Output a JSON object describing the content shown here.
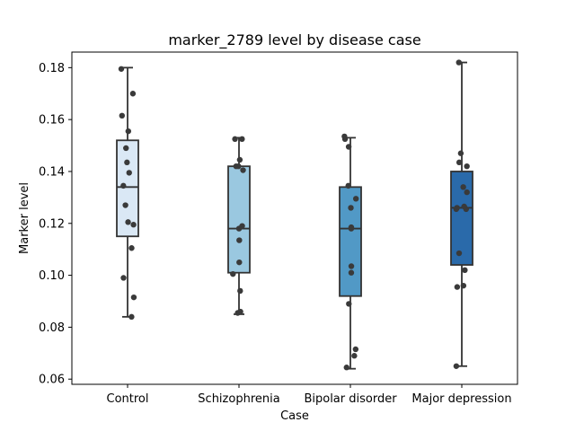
{
  "chart_data": {
    "type": "box",
    "title": "marker_2789 level by disease case",
    "xlabel": "Case",
    "ylabel": "Marker level",
    "ylim": [
      0.058,
      0.186
    ],
    "yticks": [
      0.06,
      0.08,
      0.1,
      0.12,
      0.14,
      0.16,
      0.18
    ],
    "ytick_labels": [
      "0.06",
      "0.08",
      "0.10",
      "0.12",
      "0.14",
      "0.16",
      "0.18"
    ],
    "categories": [
      "Control",
      "Schizophrenia",
      "Bipolar disorder",
      "Major depression"
    ],
    "colors": [
      "#dae8f5",
      "#9ac8e0",
      "#5199c6",
      "#2a6aaa"
    ],
    "point_color": "#3a3a3a",
    "line_color": "#333333",
    "boxes": [
      {
        "q1": 0.115,
        "median": 0.134,
        "q3": 0.152,
        "whisker_low": 0.084,
        "whisker_high": 0.18
      },
      {
        "q1": 0.101,
        "median": 0.118,
        "q3": 0.142,
        "whisker_low": 0.085,
        "whisker_high": 0.153
      },
      {
        "q1": 0.092,
        "median": 0.118,
        "q3": 0.134,
        "whisker_low": 0.064,
        "whisker_high": 0.153
      },
      {
        "q1": 0.104,
        "median": 0.126,
        "q3": 0.14,
        "whisker_low": 0.065,
        "whisker_high": 0.182
      }
    ],
    "points": [
      [
        0.1795,
        0.17,
        0.1615,
        0.1555,
        0.149,
        0.1435,
        0.1395,
        0.1345,
        0.127,
        0.1205,
        0.1195,
        0.1105,
        0.099,
        0.0915,
        0.084
      ],
      [
        0.1525,
        0.1525,
        0.1445,
        0.142,
        0.142,
        0.1405,
        0.119,
        0.118,
        0.1135,
        0.105,
        0.1005,
        0.094,
        0.086,
        0.0855
      ],
      [
        0.1535,
        0.1525,
        0.1495,
        0.1345,
        0.1295,
        0.126,
        0.1185,
        0.118,
        0.1035,
        0.101,
        0.089,
        0.0715,
        0.069,
        0.0645
      ],
      [
        0.182,
        0.147,
        0.1435,
        0.142,
        0.134,
        0.132,
        0.1265,
        0.126,
        0.1255,
        0.1255,
        0.1085,
        0.102,
        0.096,
        0.0955,
        0.065
      ]
    ],
    "grid": false,
    "legend": "none"
  }
}
